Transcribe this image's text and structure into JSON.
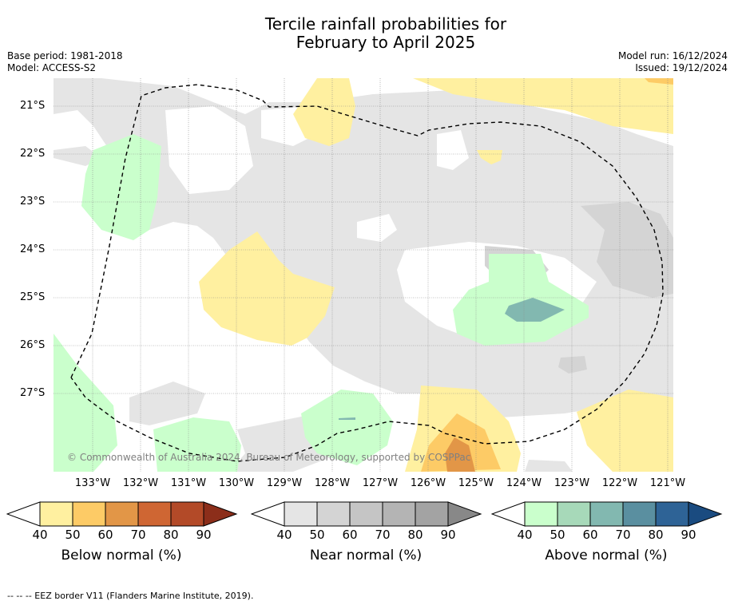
{
  "title_line1": "Tercile rainfall probabilities for",
  "title_line2": "February to April 2025",
  "base_period": "Base period: 1981-2018",
  "model": "Model: ACCESS-S2",
  "model_run": "Model run: 16/12/2024",
  "issued": "Issued: 19/12/2024",
  "copyright": "© Commonwealth of Australia 2024, Bureau of Meteorology, supported by COSPPac",
  "footnote": "--  --  -- EEZ border V11 (Flanders Marine Institute, 2019).",
  "latitude_labels": [
    "21°S",
    "22°S",
    "23°S",
    "24°S",
    "25°S",
    "26°S",
    "27°S"
  ],
  "longitude_labels": [
    "133°W",
    "132°W",
    "131°W",
    "130°W",
    "129°W",
    "128°W",
    "127°W",
    "126°W",
    "125°W",
    "124°W",
    "123°W",
    "122°W",
    "121°W"
  ],
  "colorbars": [
    {
      "title": "Below normal (%)",
      "ticks": [
        "40",
        "50",
        "60",
        "70",
        "80",
        "90"
      ],
      "colors": [
        "#fff0a0",
        "#fdcb66",
        "#e29647",
        "#cf6633",
        "#b34a28",
        "#8c2e1a"
      ]
    },
    {
      "title": "Near normal (%)",
      "ticks": [
        "40",
        "50",
        "60",
        "70",
        "80",
        "90"
      ],
      "colors": [
        "#e5e5e5",
        "#d4d4d4",
        "#c5c5c5",
        "#b4b4b4",
        "#a3a3a3",
        "#888888"
      ]
    },
    {
      "title": "Above normal (%)",
      "ticks": [
        "40",
        "50",
        "60",
        "70",
        "80",
        "90"
      ],
      "colors": [
        "#caffcc",
        "#a7d9b9",
        "#82b8b0",
        "#5a8fa0",
        "#2e6396",
        "#1a4b80"
      ]
    }
  ]
}
